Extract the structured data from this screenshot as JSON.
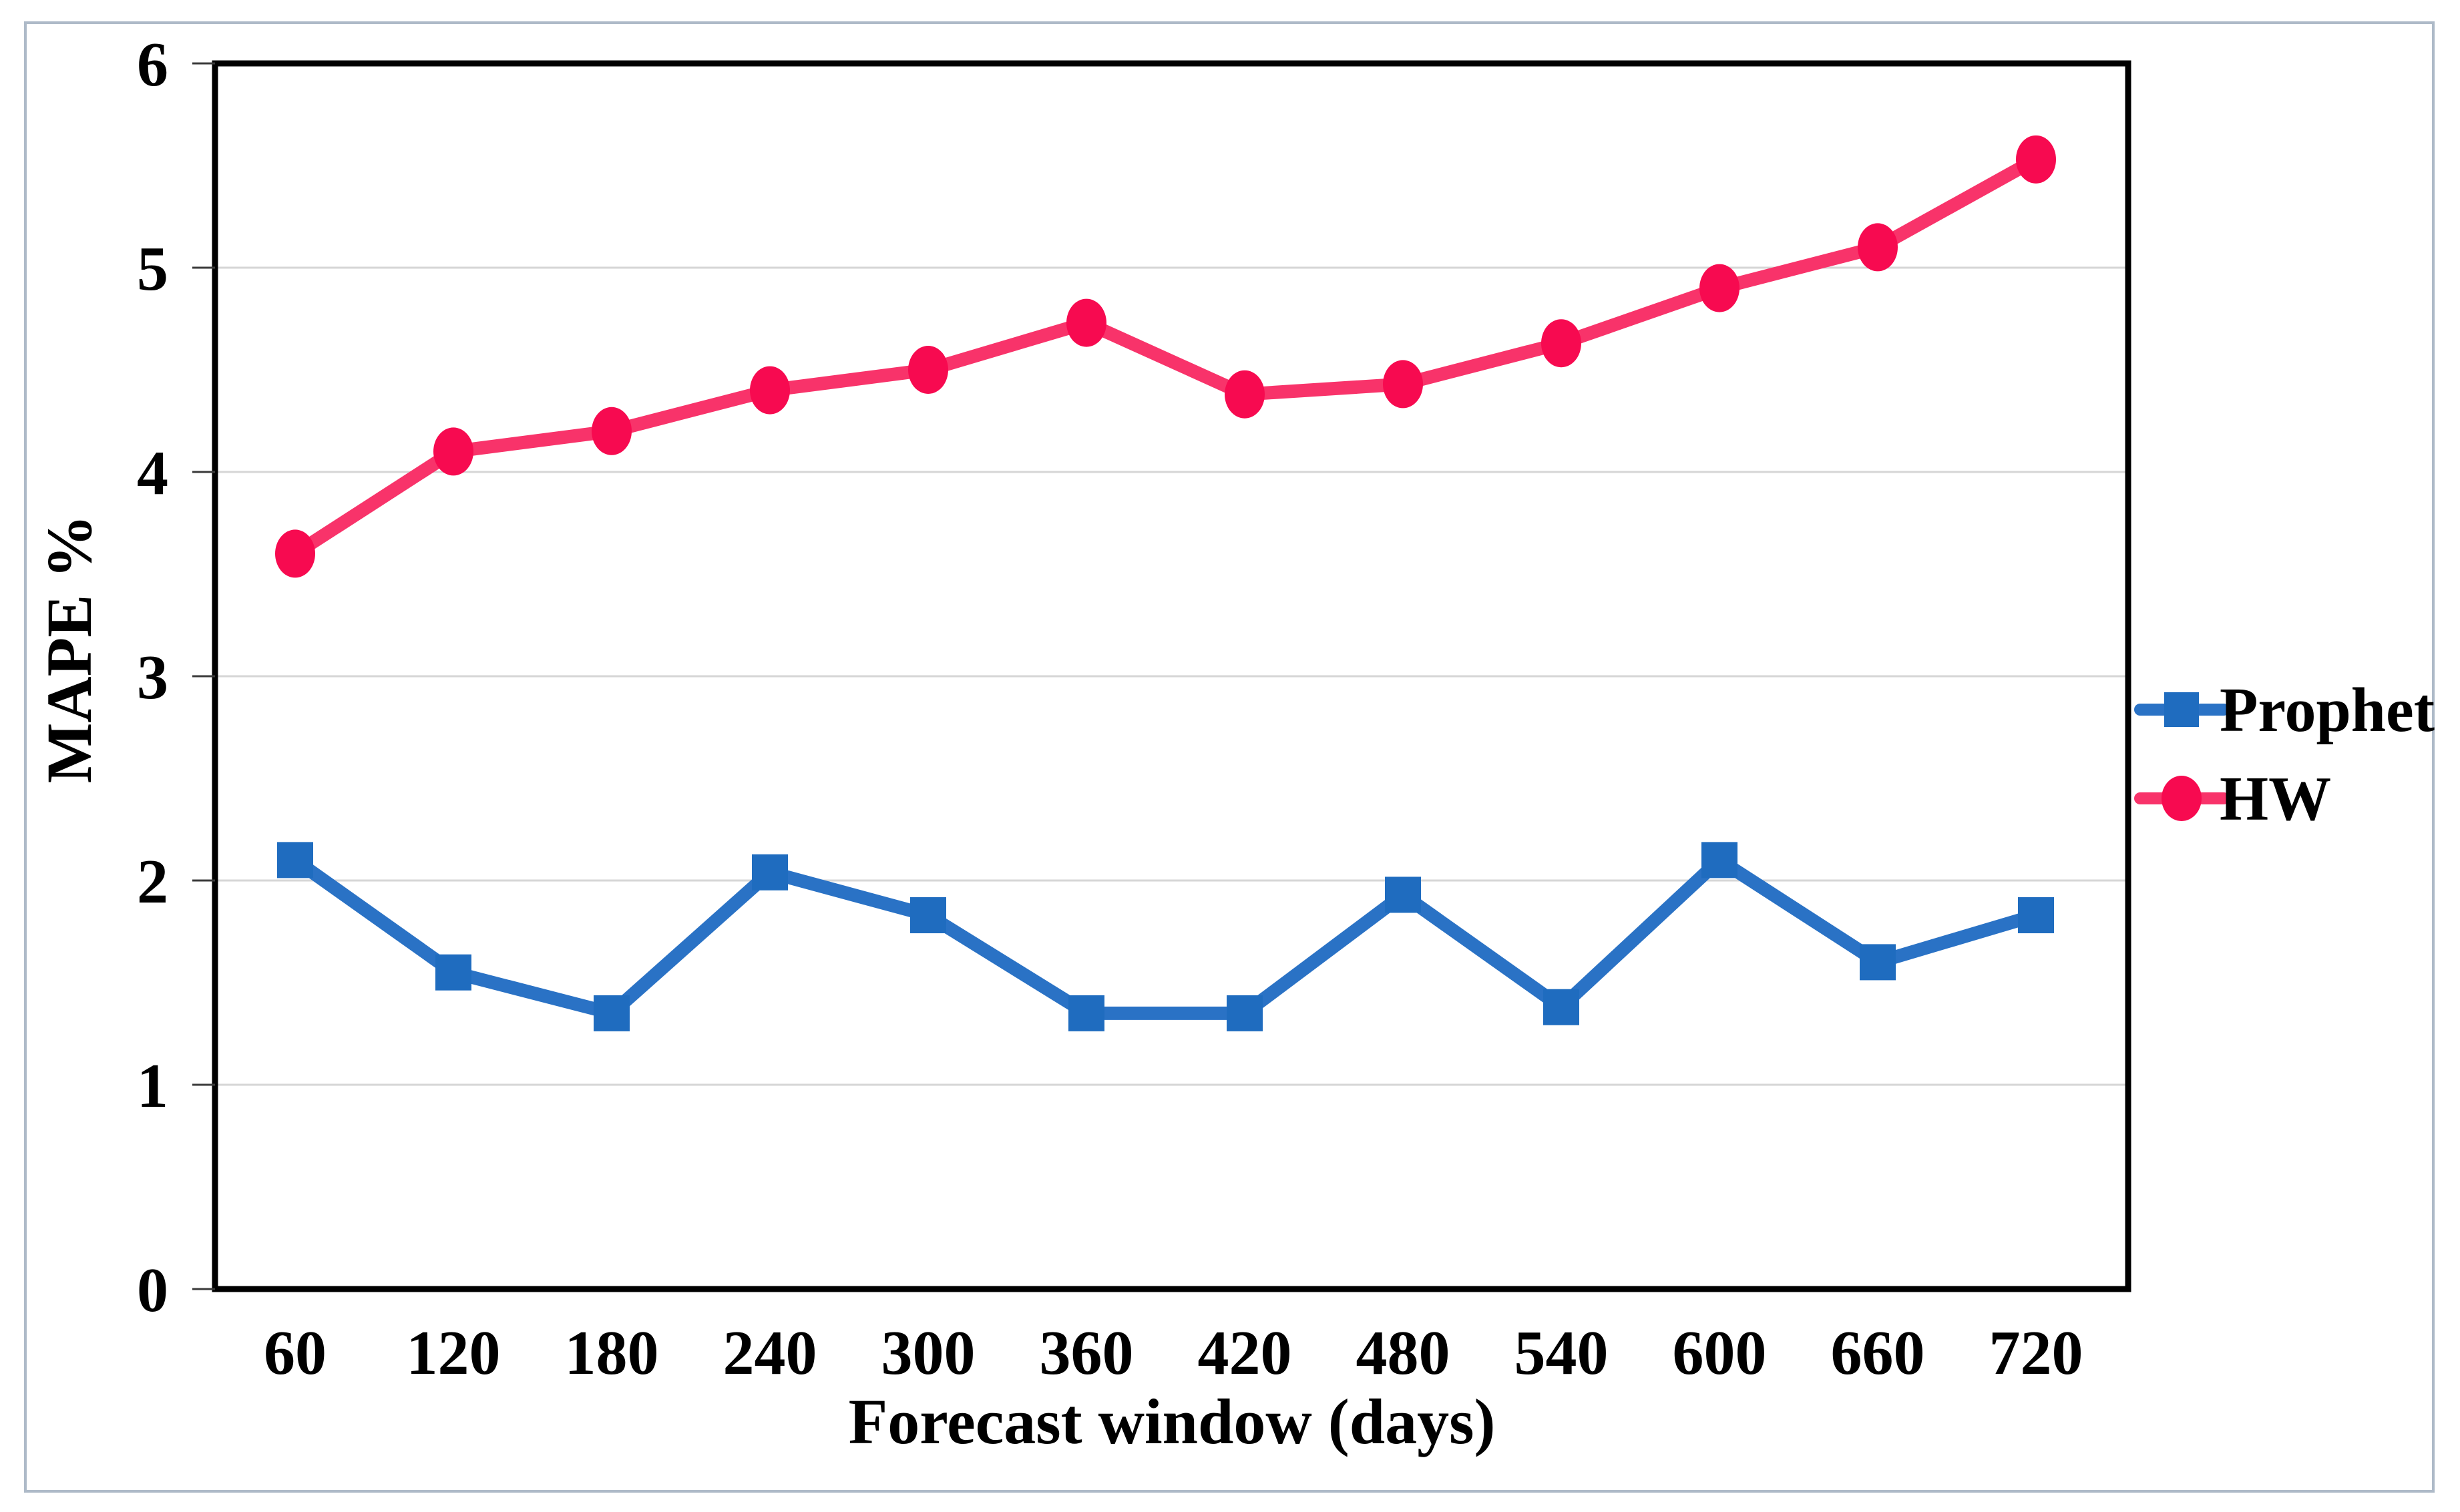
{
  "chart_data": {
    "type": "line",
    "title": "",
    "xlabel": "Forecast window (days)",
    "ylabel": "MAPE %",
    "categories": [
      60,
      120,
      180,
      240,
      300,
      360,
      420,
      480,
      540,
      600,
      660,
      720
    ],
    "series": [
      {
        "name": "Prophet",
        "marker": "square",
        "marker_color": "#1F6CBF",
        "line_color": "#2A72C5",
        "values": [
          2.1,
          1.55,
          1.35,
          2.04,
          1.83,
          1.35,
          1.35,
          1.93,
          1.38,
          2.1,
          1.6,
          1.83
        ]
      },
      {
        "name": "HW",
        "marker": "circle",
        "marker_color": "#F70A50",
        "line_color": "#F8336A",
        "values": [
          3.6,
          4.1,
          4.2,
          4.4,
          4.5,
          4.73,
          4.38,
          4.43,
          4.63,
          4.9,
          5.1,
          5.53
        ]
      }
    ],
    "ylim": [
      0,
      6
    ],
    "y_ticks": [
      "0",
      "1",
      "2",
      "3",
      "4",
      "5",
      "6"
    ],
    "grid": "horizontal",
    "legend_position": "right"
  },
  "style": {
    "frame_border_color": "#AEBAC8",
    "background_color": "#FFFFFF",
    "plot_border_color": "#000000",
    "gridline_color": "#D6D6D6",
    "tick_color": "#3A3A3A",
    "text_color": "#000000"
  }
}
